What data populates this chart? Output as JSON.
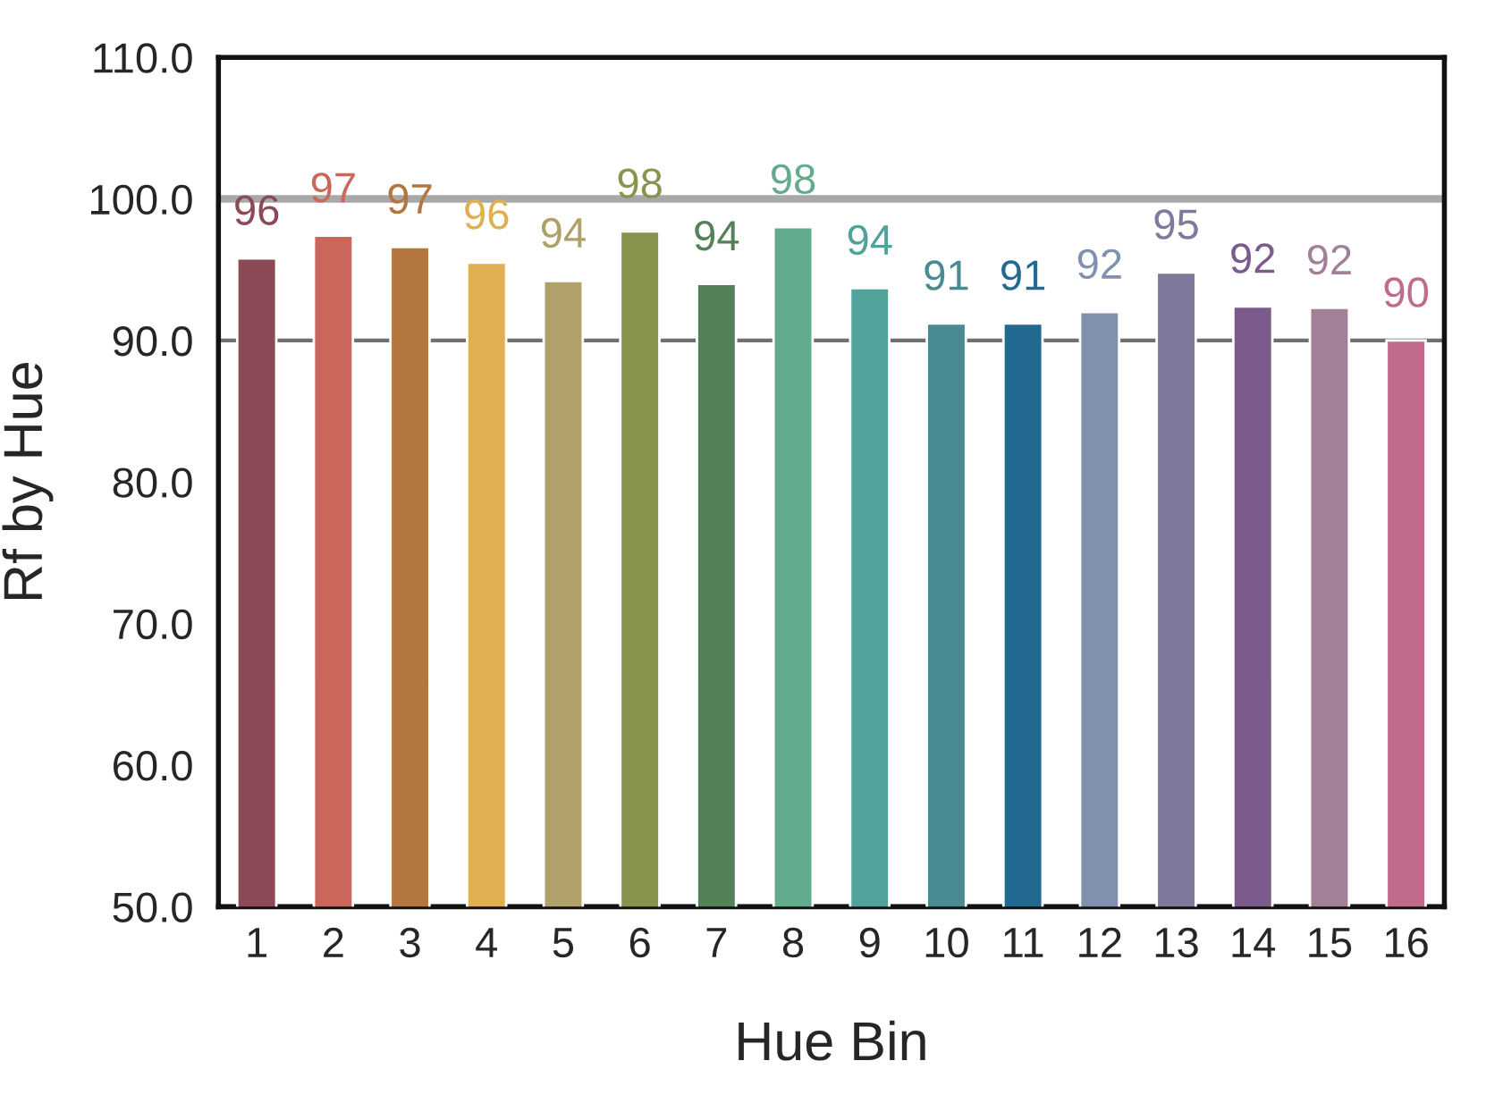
{
  "chart_data": {
    "type": "bar",
    "xlabel": "Hue Bin",
    "ylabel": "Rf by Hue",
    "categories": [
      "1",
      "2",
      "3",
      "4",
      "5",
      "6",
      "7",
      "8",
      "9",
      "10",
      "11",
      "12",
      "13",
      "14",
      "15",
      "16"
    ],
    "values": [
      95.8,
      97.4,
      96.6,
      95.5,
      94.2,
      97.7,
      94.0,
      98.0,
      93.7,
      91.2,
      91.2,
      92.0,
      94.8,
      92.4,
      92.3,
      90.0
    ],
    "colors": [
      "#8b4a55",
      "#c8675a",
      "#b3763f",
      "#e0b050",
      "#b0a06a",
      "#86944e",
      "#548158",
      "#62ab8c",
      "#4fa39a",
      "#4a8a92",
      "#236a90",
      "#8290b0",
      "#7e7a9c",
      "#7b5b8c",
      "#a3809a",
      "#c06a8c"
    ],
    "value_labels": [
      "96",
      "97",
      "97",
      "96",
      "94",
      "98",
      "94",
      "98",
      "94",
      "91",
      "91",
      "92",
      "95",
      "92",
      "92",
      "90"
    ],
    "ylim": [
      50,
      110
    ],
    "yticks": [
      {
        "value": 50,
        "label": "50.0"
      },
      {
        "value": 60,
        "label": "60.0"
      },
      {
        "value": 70,
        "label": "70.0"
      },
      {
        "value": 80,
        "label": "80.0"
      },
      {
        "value": 90,
        "label": "90.0"
      },
      {
        "value": 100,
        "label": "100.0"
      },
      {
        "value": 110,
        "label": "110.0"
      }
    ],
    "ref_lines": [
      {
        "axis": "y",
        "value": 90,
        "color": "#707070"
      },
      {
        "axis": "y",
        "value": 100,
        "color": "#a8a8a8"
      }
    ]
  }
}
